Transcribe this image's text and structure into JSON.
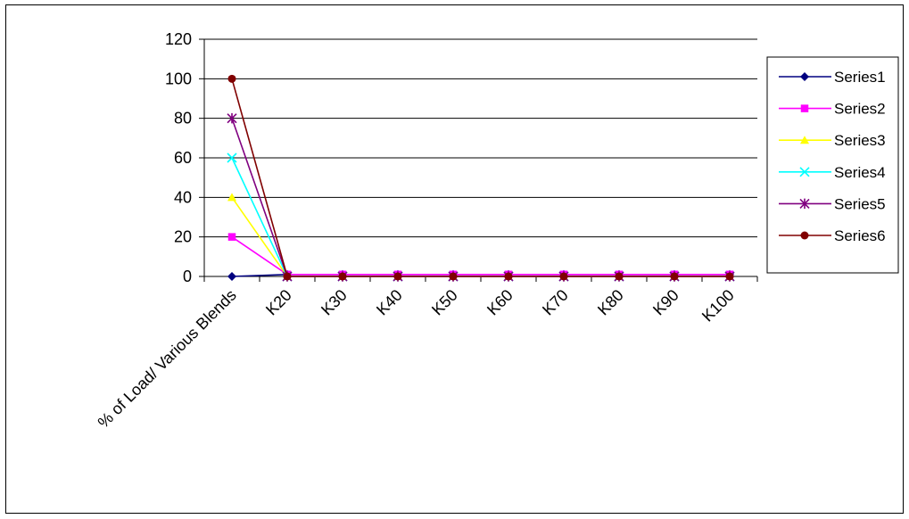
{
  "chart_data": {
    "type": "line",
    "title": "",
    "xlabel": "",
    "ylabel": "",
    "ylim": [
      0,
      120
    ],
    "yticks": [
      0,
      20,
      40,
      60,
      80,
      100,
      120
    ],
    "grid": "horizontal",
    "legend": "right",
    "categories": [
      "% of Load/ Various Blends",
      "K20",
      "K30",
      "K40",
      "K50",
      "K60",
      "K70",
      "K80",
      "K90",
      "K100"
    ],
    "series": [
      {
        "name": "Series1",
        "color": "#000080",
        "marker": "diamond",
        "values": [
          0,
          1,
          1,
          1,
          1,
          1,
          1,
          1,
          1,
          1
        ]
      },
      {
        "name": "Series2",
        "color": "#FF00FF",
        "marker": "square",
        "values": [
          20,
          1,
          1,
          1,
          1,
          1,
          1,
          1,
          1,
          1
        ]
      },
      {
        "name": "Series3",
        "color": "#FFFF00",
        "marker": "triangle",
        "values": [
          40,
          0,
          0,
          0,
          0,
          0,
          0,
          0,
          0,
          0
        ]
      },
      {
        "name": "Series4",
        "color": "#00FFFF",
        "marker": "x",
        "values": [
          60,
          0,
          0,
          0,
          0,
          0,
          0,
          0,
          0,
          0
        ]
      },
      {
        "name": "Series5",
        "color": "#800080",
        "marker": "star",
        "values": [
          80,
          0,
          0,
          0,
          0,
          0,
          0,
          0,
          0,
          0
        ]
      },
      {
        "name": "Series6",
        "color": "#800000",
        "marker": "circle",
        "values": [
          100,
          0,
          0,
          0,
          0,
          0,
          0,
          0,
          0,
          0
        ]
      }
    ]
  }
}
